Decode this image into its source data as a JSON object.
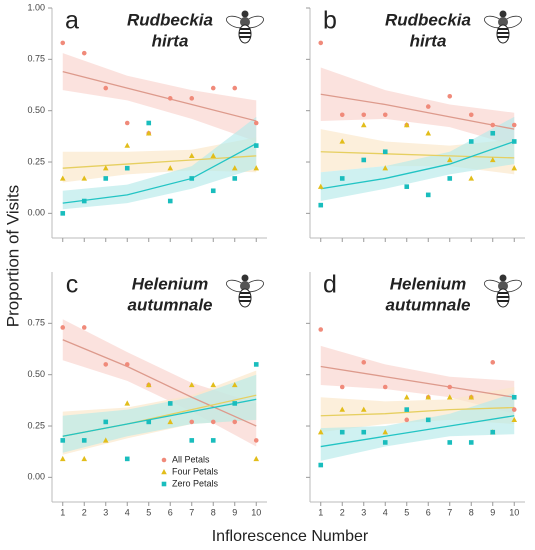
{
  "y_label": "Proportion of Visits",
  "x_label": "Inflorescence Number",
  "chart_data": [
    {
      "type": "scatter",
      "letter": "a",
      "title_lines": [
        "Rudbeckia",
        "hirta"
      ],
      "x": [
        1,
        2,
        3,
        4,
        5,
        6,
        7,
        8,
        9,
        10
      ],
      "fit_x": [
        1,
        4,
        7,
        10
      ],
      "xlim": [
        0.5,
        10.5
      ],
      "xticks": [
        1,
        2,
        3,
        4,
        5,
        6,
        7,
        8,
        9,
        10
      ],
      "ylim": [
        -0.12,
        1.0
      ],
      "yticks": [
        {
          "value": 0,
          "label": "0.00"
        },
        {
          "value": 0.25,
          "label": "0.25"
        },
        {
          "value": 0.5,
          "label": "0.50"
        },
        {
          "value": 0.75,
          "label": "0.75"
        },
        {
          "value": 1,
          "label": "1.00"
        }
      ],
      "series": [
        {
          "name": "All Petals",
          "color": "#f08a7a",
          "line_color": "#dd9a8c",
          "band_color": "#f9d3cc",
          "marker": "circle",
          "values": [
            0.83,
            0.78,
            0.61,
            0.44,
            0.39,
            0.56,
            0.56,
            0.61,
            0.61,
            0.44
          ],
          "fit": [
            0.69,
            0.61,
            0.53,
            0.45
          ],
          "lower": [
            0.6,
            0.55,
            0.46,
            0.35
          ],
          "upper": [
            0.78,
            0.67,
            0.6,
            0.55
          ]
        },
        {
          "name": "Four Petals",
          "color": "#e2bd1a",
          "line_color": "#e6cf60",
          "band_color": "#fbe6c8",
          "marker": "triangle",
          "values": [
            0.17,
            0.17,
            0.22,
            0.33,
            0.39,
            0.22,
            0.28,
            0.28,
            0.22,
            0.22
          ],
          "fit": [
            0.22,
            0.24,
            0.26,
            0.28
          ],
          "lower": [
            0.15,
            0.19,
            0.21,
            0.2
          ],
          "upper": [
            0.3,
            0.3,
            0.31,
            0.37
          ]
        },
        {
          "name": "Zero Petals",
          "color": "#19bdbd",
          "line_color": "#22c4c4",
          "band_color": "#b5eaea",
          "marker": "square",
          "values": [
            0.0,
            0.06,
            0.17,
            0.22,
            0.44,
            0.06,
            0.17,
            0.11,
            0.17,
            0.33
          ],
          "fit": [
            0.05,
            0.09,
            0.17,
            0.34
          ],
          "lower": [
            0.02,
            0.05,
            0.12,
            0.22
          ],
          "upper": [
            0.11,
            0.14,
            0.23,
            0.47
          ]
        }
      ]
    },
    {
      "type": "scatter",
      "letter": "b",
      "title_lines": [
        "Rudbeckia",
        "hirta"
      ],
      "x": [
        1,
        2,
        3,
        4,
        5,
        6,
        7,
        8,
        9,
        10
      ],
      "fit_x": [
        1,
        4,
        7,
        10
      ],
      "xlim": [
        0.5,
        10.5
      ],
      "xticks": [
        1,
        2,
        3,
        4,
        5,
        6,
        7,
        8,
        9,
        10
      ],
      "ylim": [
        -0.12,
        1.0
      ],
      "yticks": [
        {
          "value": 0,
          "label": "0.00"
        },
        {
          "value": 0.25,
          "label": "0.25"
        },
        {
          "value": 0.5,
          "label": "0.50"
        },
        {
          "value": 0.75,
          "label": "0.75"
        },
        {
          "value": 1,
          "label": "1.00"
        }
      ],
      "series": [
        {
          "name": "All Petals",
          "color": "#f08a7a",
          "line_color": "#dd9a8c",
          "band_color": "#f9d3cc",
          "marker": "circle",
          "values": [
            0.83,
            0.48,
            0.48,
            0.48,
            0.43,
            0.52,
            0.57,
            0.48,
            0.43,
            0.43
          ],
          "fit": [
            0.58,
            0.53,
            0.47,
            0.41
          ],
          "lower": [
            0.45,
            0.46,
            0.42,
            0.33
          ],
          "upper": [
            0.71,
            0.6,
            0.53,
            0.49
          ]
        },
        {
          "name": "Four Petals",
          "color": "#e2bd1a",
          "line_color": "#e6cf60",
          "band_color": "#fbe6c8",
          "marker": "triangle",
          "values": [
            0.13,
            0.35,
            0.43,
            0.22,
            0.43,
            0.39,
            0.26,
            0.17,
            0.26,
            0.22
          ],
          "fit": [
            0.3,
            0.29,
            0.28,
            0.27
          ],
          "lower": [
            0.2,
            0.23,
            0.23,
            0.19
          ],
          "upper": [
            0.41,
            0.35,
            0.33,
            0.36
          ]
        },
        {
          "name": "Zero Petals",
          "color": "#19bdbd",
          "line_color": "#22c4c4",
          "band_color": "#b5eaea",
          "marker": "square",
          "values": [
            0.04,
            0.17,
            0.26,
            0.3,
            0.13,
            0.09,
            0.17,
            0.35,
            0.39,
            0.35
          ],
          "fit": [
            0.12,
            0.17,
            0.24,
            0.35
          ],
          "lower": [
            0.06,
            0.12,
            0.19,
            0.24
          ],
          "upper": [
            0.2,
            0.23,
            0.3,
            0.47
          ]
        }
      ]
    },
    {
      "type": "scatter",
      "letter": "c",
      "title_lines": [
        "Helenium",
        "autumnale"
      ],
      "legend": "bottom-left",
      "x": [
        1,
        2,
        3,
        4,
        5,
        6,
        7,
        8,
        9,
        10
      ],
      "fit_x": [
        1,
        4,
        7,
        10
      ],
      "xlim": [
        0.5,
        10.5
      ],
      "xticks": [
        1,
        2,
        3,
        4,
        5,
        6,
        7,
        8,
        9,
        10
      ],
      "ylim": [
        -0.12,
        1.0
      ],
      "yticks": [
        {
          "value": 0,
          "label": "0.00"
        },
        {
          "value": 0.25,
          "label": "0.25"
        },
        {
          "value": 0.5,
          "label": "0.50"
        },
        {
          "value": 0.75,
          "label": "0.75"
        }
      ],
      "series": [
        {
          "name": "All Petals",
          "color": "#f08a7a",
          "line_color": "#dd9a8c",
          "band_color": "#f9d3cc",
          "marker": "circle",
          "values": [
            0.73,
            0.73,
            0.55,
            0.55,
            0.45,
            0.36,
            0.27,
            0.27,
            0.27,
            0.18
          ],
          "fit": [
            0.67,
            0.54,
            0.39,
            0.25
          ],
          "lower": [
            0.57,
            0.47,
            0.32,
            0.15
          ],
          "upper": [
            0.77,
            0.61,
            0.46,
            0.36
          ]
        },
        {
          "name": "Four Petals",
          "color": "#e2bd1a",
          "line_color": "#e6cf60",
          "band_color": "#fbe6c8",
          "marker": "triangle",
          "values": [
            0.09,
            0.09,
            0.18,
            0.36,
            0.45,
            0.27,
            0.45,
            0.45,
            0.45,
            0.09
          ],
          "fit": [
            0.2,
            0.26,
            0.33,
            0.4
          ],
          "lower": [
            0.11,
            0.19,
            0.26,
            0.28
          ],
          "upper": [
            0.32,
            0.34,
            0.4,
            0.52
          ]
        },
        {
          "name": "Zero Petals",
          "color": "#19bdbd",
          "line_color": "#22c4c4",
          "band_color": "#b5eaea",
          "marker": "square",
          "values": [
            0.18,
            0.18,
            0.27,
            0.09,
            0.27,
            0.36,
            0.18,
            0.18,
            0.36,
            0.55
          ],
          "fit": [
            0.2,
            0.26,
            0.32,
            0.38
          ],
          "lower": [
            0.12,
            0.2,
            0.26,
            0.28
          ],
          "upper": [
            0.3,
            0.33,
            0.39,
            0.5
          ]
        }
      ]
    },
    {
      "type": "scatter",
      "letter": "d",
      "title_lines": [
        "Helenium",
        "autumnale"
      ],
      "x": [
        1,
        2,
        3,
        4,
        5,
        6,
        7,
        8,
        9,
        10
      ],
      "fit_x": [
        1,
        4,
        7,
        10
      ],
      "xlim": [
        0.5,
        10.5
      ],
      "xticks": [
        1,
        2,
        3,
        4,
        5,
        6,
        7,
        8,
        9,
        10
      ],
      "ylim": [
        -0.12,
        1.0
      ],
      "yticks": [
        {
          "value": 0,
          "label": "0.00"
        },
        {
          "value": 0.25,
          "label": "0.25"
        },
        {
          "value": 0.5,
          "label": "0.50"
        },
        {
          "value": 0.75,
          "label": "0.75"
        }
      ],
      "series": [
        {
          "name": "All Petals",
          "color": "#f08a7a",
          "line_color": "#dd9a8c",
          "band_color": "#f9d3cc",
          "marker": "circle",
          "values": [
            0.72,
            0.44,
            0.56,
            0.44,
            0.28,
            0.39,
            0.44,
            0.39,
            0.56,
            0.33
          ],
          "fit": [
            0.54,
            0.49,
            0.44,
            0.39
          ],
          "lower": [
            0.45,
            0.43,
            0.39,
            0.31
          ],
          "upper": [
            0.64,
            0.55,
            0.49,
            0.47
          ]
        },
        {
          "name": "Four Petals",
          "color": "#e2bd1a",
          "line_color": "#e6cf60",
          "band_color": "#fbe6c8",
          "marker": "triangle",
          "values": [
            0.22,
            0.33,
            0.33,
            0.22,
            0.39,
            0.39,
            0.39,
            0.39,
            0.22,
            0.28
          ],
          "fit": [
            0.3,
            0.31,
            0.33,
            0.34
          ],
          "lower": [
            0.22,
            0.26,
            0.28,
            0.26
          ],
          "upper": [
            0.39,
            0.37,
            0.38,
            0.44
          ]
        },
        {
          "name": "Zero Petals",
          "color": "#19bdbd",
          "line_color": "#22c4c4",
          "band_color": "#b5eaea",
          "marker": "square",
          "values": [
            0.06,
            0.22,
            0.22,
            0.17,
            0.33,
            0.28,
            0.17,
            0.17,
            0.22,
            0.39
          ],
          "fit": [
            0.15,
            0.2,
            0.25,
            0.3
          ],
          "lower": [
            0.08,
            0.15,
            0.2,
            0.21
          ],
          "upper": [
            0.24,
            0.25,
            0.31,
            0.41
          ]
        }
      ]
    }
  ]
}
